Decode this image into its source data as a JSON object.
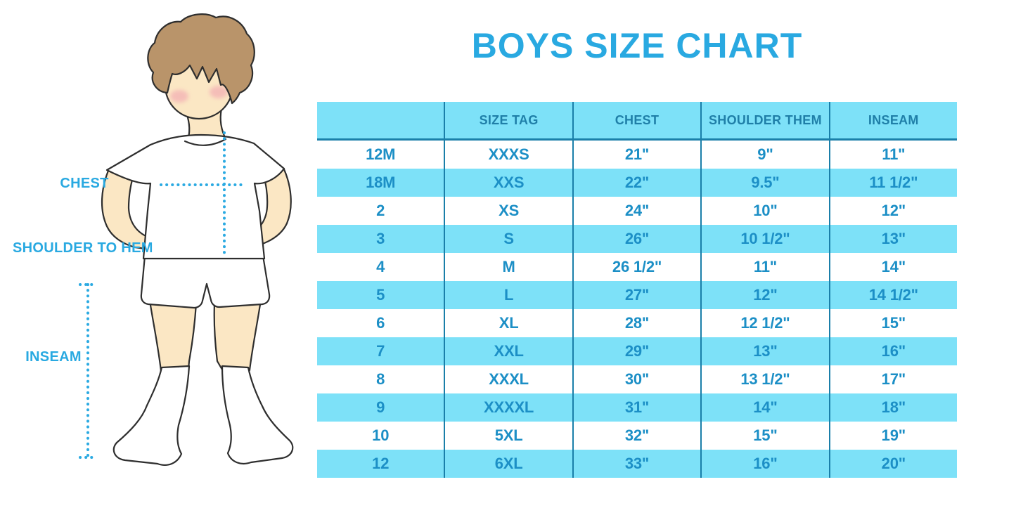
{
  "title": "BOYS SIZE CHART",
  "colors": {
    "accent_blue": "#29a9e1",
    "cell_blue": "#7de1f8",
    "divider": "#1a7fa9",
    "header_text": "#1f7fa8",
    "body_text": "#1c8fc6",
    "dot_blue": "#2baae2"
  },
  "figure": {
    "labels": {
      "chest": "CHEST",
      "shoulder_to_hem": "SHOULDER TO HEM",
      "inseam": "INSEAM"
    }
  },
  "table": {
    "columns": [
      "",
      "SIZE TAG",
      "CHEST",
      "SHOULDER THEM",
      "INSEAM"
    ],
    "rows": [
      [
        "12M",
        "XXXS",
        "21\"",
        "9\"",
        "11\""
      ],
      [
        "18M",
        "XXS",
        "22\"",
        "9.5\"",
        "11 1/2\""
      ],
      [
        "2",
        "XS",
        "24\"",
        "10\"",
        "12\""
      ],
      [
        "3",
        "S",
        "26\"",
        "10 1/2\"",
        "13\""
      ],
      [
        "4",
        "M",
        "26 1/2\"",
        "11\"",
        "14\""
      ],
      [
        "5",
        "L",
        "27\"",
        "12\"",
        "14 1/2\""
      ],
      [
        "6",
        "XL",
        "28\"",
        "12 1/2\"",
        "15\""
      ],
      [
        "7",
        "XXL",
        "29\"",
        "13\"",
        "16\""
      ],
      [
        "8",
        "XXXL",
        "30\"",
        "13 1/2\"",
        "17\""
      ],
      [
        "9",
        "XXXXL",
        "31\"",
        "14\"",
        "18\""
      ],
      [
        "10",
        "5XL",
        "32\"",
        "15\"",
        "19\""
      ],
      [
        "12",
        "6XL",
        "33\"",
        "16\"",
        "20\""
      ]
    ]
  }
}
